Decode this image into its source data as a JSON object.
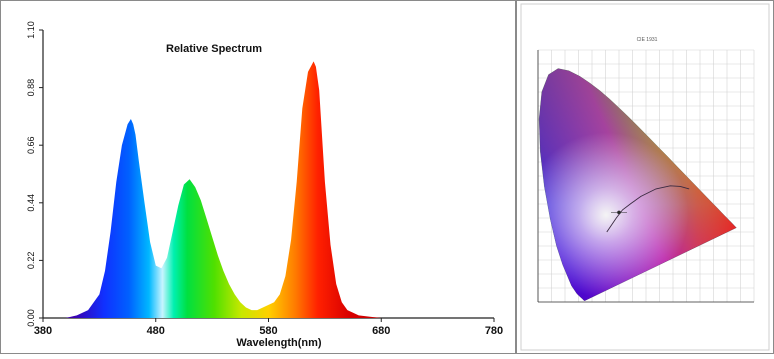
{
  "chart_data": [
    {
      "type": "area",
      "title": "Relative Spectrum",
      "xlabel": "Wavelength(nm)",
      "ylabel": "",
      "xlim": [
        380,
        780
      ],
      "ylim": [
        0,
        1.1
      ],
      "x_ticks": [
        "380",
        "480",
        "580",
        "680",
        "780"
      ],
      "y_ticks": [
        "0.00",
        "0.22",
        "0.44",
        "0.66",
        "0.88",
        "1.10"
      ],
      "grid": false,
      "fill": "wavelength-colored spectrum gradient",
      "series": [
        {
          "x": [
            400,
            410,
            420,
            430,
            435,
            440,
            445,
            450,
            455,
            458,
            460,
            462,
            465,
            470,
            475,
            480,
            485,
            490,
            495,
            500,
            505,
            510,
            515,
            520,
            525,
            530,
            535,
            540,
            545,
            550,
            555,
            560,
            565,
            570,
            575,
            580,
            585,
            590,
            595,
            600,
            605,
            610,
            615,
            620,
            622,
            625,
            628,
            630,
            635,
            640,
            645,
            650,
            655,
            660,
            670,
            680,
            700
          ],
          "y": [
            0.0,
            0.01,
            0.03,
            0.09,
            0.18,
            0.33,
            0.52,
            0.66,
            0.74,
            0.76,
            0.74,
            0.7,
            0.6,
            0.44,
            0.29,
            0.2,
            0.19,
            0.23,
            0.33,
            0.43,
            0.51,
            0.53,
            0.5,
            0.45,
            0.38,
            0.31,
            0.24,
            0.18,
            0.13,
            0.09,
            0.06,
            0.04,
            0.03,
            0.03,
            0.04,
            0.05,
            0.06,
            0.09,
            0.16,
            0.3,
            0.52,
            0.8,
            0.94,
            0.98,
            0.96,
            0.87,
            0.66,
            0.52,
            0.28,
            0.13,
            0.06,
            0.03,
            0.02,
            0.01,
            0.005,
            0.0,
            0.0
          ]
        }
      ]
    },
    {
      "type": "scatter",
      "title": "CIE 1931",
      "xlim": [
        0,
        0.8
      ],
      "ylim": [
        0,
        0.9
      ],
      "grid": true,
      "fill": "chromaticity color gamut",
      "spectral_locus": [
        [
          0.1741,
          0.005
        ],
        [
          0.1738,
          0.0049
        ],
        [
          0.1733,
          0.0048
        ],
        [
          0.1726,
          0.0048
        ],
        [
          0.1714,
          0.0051
        ],
        [
          0.1689,
          0.0069
        ],
        [
          0.1644,
          0.0109
        ],
        [
          0.1566,
          0.0177
        ],
        [
          0.144,
          0.0297
        ],
        [
          0.1241,
          0.0578
        ],
        [
          0.0913,
          0.1327
        ],
        [
          0.0687,
          0.2007
        ],
        [
          0.0454,
          0.295
        ],
        [
          0.0235,
          0.4127
        ],
        [
          0.0082,
          0.5384
        ],
        [
          0.0039,
          0.6548
        ],
        [
          0.0139,
          0.7502
        ],
        [
          0.0389,
          0.812
        ],
        [
          0.0743,
          0.8338
        ],
        [
          0.1142,
          0.8262
        ],
        [
          0.1547,
          0.8059
        ],
        [
          0.1929,
          0.7816
        ],
        [
          0.2296,
          0.7543
        ],
        [
          0.2658,
          0.7243
        ],
        [
          0.3016,
          0.6923
        ],
        [
          0.3373,
          0.6589
        ],
        [
          0.3731,
          0.6245
        ],
        [
          0.4087,
          0.5896
        ],
        [
          0.4441,
          0.5547
        ],
        [
          0.4788,
          0.5202
        ],
        [
          0.5125,
          0.4866
        ],
        [
          0.5448,
          0.4544
        ],
        [
          0.5752,
          0.4242
        ],
        [
          0.6029,
          0.3965
        ],
        [
          0.627,
          0.3725
        ],
        [
          0.6482,
          0.3514
        ],
        [
          0.6658,
          0.334
        ],
        [
          0.6801,
          0.3197
        ],
        [
          0.6915,
          0.3083
        ],
        [
          0.7006,
          0.2993
        ],
        [
          0.7079,
          0.292
        ],
        [
          0.714,
          0.2859
        ],
        [
          0.719,
          0.2809
        ],
        [
          0.723,
          0.277
        ],
        [
          0.726,
          0.274
        ],
        [
          0.7283,
          0.2717
        ],
        [
          0.73,
          0.27
        ],
        [
          0.7311,
          0.2689
        ],
        [
          0.732,
          0.268
        ],
        [
          0.7327,
          0.2673
        ],
        [
          0.7334,
          0.2666
        ],
        [
          0.734,
          0.266
        ],
        [
          0.7344,
          0.2656
        ],
        [
          0.7346,
          0.2654
        ],
        [
          0.7347,
          0.2653
        ]
      ],
      "planckian_locus": [
        [
          0.255,
          0.25
        ],
        [
          0.29,
          0.3
        ],
        [
          0.313,
          0.329
        ],
        [
          0.345,
          0.352
        ],
        [
          0.381,
          0.377
        ],
        [
          0.437,
          0.404
        ],
        [
          0.49,
          0.415
        ],
        [
          0.527,
          0.413
        ],
        [
          0.56,
          0.404
        ]
      ],
      "marked_point": [
        0.3,
        0.32
      ]
    }
  ]
}
